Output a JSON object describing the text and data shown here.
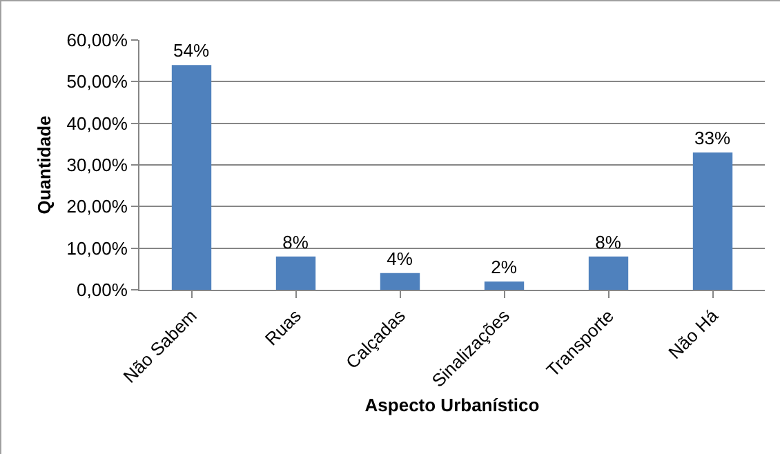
{
  "chart_data": {
    "type": "bar",
    "xlabel": "Aspecto Urbanístico",
    "ylabel": "Quantidade",
    "categories": [
      "Não Sabem",
      "Ruas",
      "Calçadas",
      "Sinalizações",
      "Transporte",
      "Não Há"
    ],
    "values": [
      54,
      8,
      4,
      2,
      8,
      33
    ],
    "value_labels": [
      "54%",
      "8%",
      "4%",
      "2%",
      "8%",
      "33%"
    ],
    "color": "#4f81bd",
    "ylim": [
      0,
      60
    ],
    "yticks": [
      {
        "value": 0,
        "label": "0,00%"
      },
      {
        "value": 10,
        "label": "10,00%"
      },
      {
        "value": 20,
        "label": "20,00%"
      },
      {
        "value": 30,
        "label": "30,00%"
      },
      {
        "value": 40,
        "label": "40,00%"
      },
      {
        "value": 50,
        "label": "50,00%"
      },
      {
        "value": 60,
        "label": "60,00%"
      }
    ],
    "grid": "y",
    "legend": false
  }
}
